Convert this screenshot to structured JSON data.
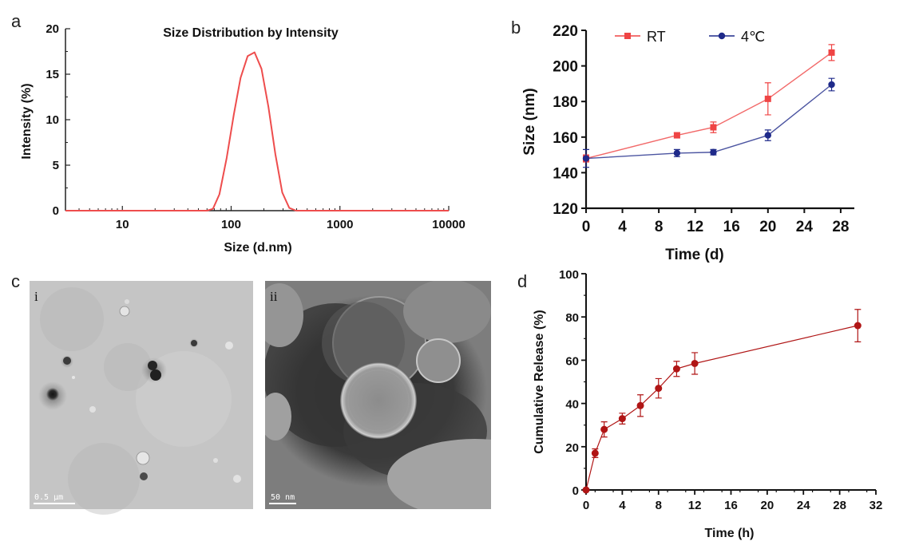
{
  "panels": {
    "a": "a",
    "b": "b",
    "c": "c",
    "d": "d"
  },
  "chart_data": [
    {
      "id": "a",
      "type": "line",
      "title": "Size Distribution  by Intensity",
      "xlabel": "Size (d.nm)",
      "ylabel": "Intensity (%)",
      "xscale": "log",
      "xlim": [
        3,
        10000
      ],
      "ylim": [
        0,
        20
      ],
      "xticks": [
        10,
        100,
        1000,
        10000
      ],
      "xtick_labels": [
        "10",
        "100",
        "1000",
        "10000"
      ],
      "yticks": [
        0,
        5,
        10,
        15,
        20
      ],
      "ytick_labels": [
        "0",
        "5",
        "10",
        "15",
        "20"
      ],
      "color": "#ee4d4d",
      "series": [
        {
          "x": [
            3,
            60,
            68,
            78,
            91,
            106,
            122,
            142,
            164,
            190,
            220,
            255,
            295,
            342,
            396,
            10000
          ],
          "values": [
            0,
            0,
            0.2,
            1.8,
            5.8,
            10.6,
            14.6,
            17.0,
            17.4,
            15.6,
            11.4,
            6.2,
            2.0,
            0.3,
            0,
            0
          ]
        }
      ]
    },
    {
      "id": "b",
      "type": "line",
      "xlabel": "Time (d)",
      "ylabel": "Size (nm)",
      "xlim": [
        0,
        29.5
      ],
      "ylim": [
        120,
        220
      ],
      "xticks": [
        0,
        4,
        8,
        12,
        16,
        20,
        24,
        28
      ],
      "xtick_labels": [
        "0",
        "4",
        "8",
        "12",
        "16",
        "20",
        "24",
        "28"
      ],
      "yticks": [
        120,
        140,
        160,
        180,
        200,
        220
      ],
      "ytick_labels": [
        "120",
        "140",
        "160",
        "180",
        "200",
        "220"
      ],
      "legend": "top",
      "x": [
        0,
        10,
        14,
        20,
        27
      ],
      "series": [
        {
          "name": "RT",
          "color": "#ef4444",
          "marker": "square",
          "values": [
            148,
            161,
            165.5,
            181.5,
            207.5
          ],
          "errors": [
            2,
            1.5,
            3,
            9,
            4.5
          ]
        },
        {
          "name": "4℃",
          "color": "#1f2a8a",
          "marker": "circle",
          "values": [
            148,
            151,
            151.5,
            161,
            189.5
          ],
          "errors": [
            5,
            2,
            1.5,
            3,
            3.5
          ]
        }
      ]
    },
    {
      "id": "d",
      "type": "line",
      "xlabel": "Time (h)",
      "ylabel": "Cumulative Release (%)",
      "xlim": [
        0,
        32
      ],
      "ylim": [
        0,
        100
      ],
      "xticks": [
        0,
        4,
        8,
        12,
        16,
        20,
        24,
        28,
        32
      ],
      "xtick_labels": [
        "0",
        "4",
        "8",
        "12",
        "16",
        "20",
        "24",
        "28",
        "32"
      ],
      "yticks": [
        0,
        20,
        40,
        60,
        80,
        100
      ],
      "ytick_labels": [
        "0",
        "20",
        "40",
        "60",
        "80",
        "100"
      ],
      "color": "#b01515",
      "x": [
        0,
        1,
        2,
        4,
        6,
        8,
        10,
        12,
        30
      ],
      "series": [
        {
          "values": [
            0,
            17,
            28,
            33,
            39,
            47,
            56,
            58.5,
            76
          ],
          "errors": [
            0,
            2,
            3.5,
            2.5,
            5,
            4.5,
            3.5,
            5,
            7.5
          ]
        }
      ]
    }
  ],
  "micrographs": [
    {
      "label": "i",
      "scalebar": "0.5 μm"
    },
    {
      "label": "ii",
      "scalebar": "50 nm"
    }
  ]
}
